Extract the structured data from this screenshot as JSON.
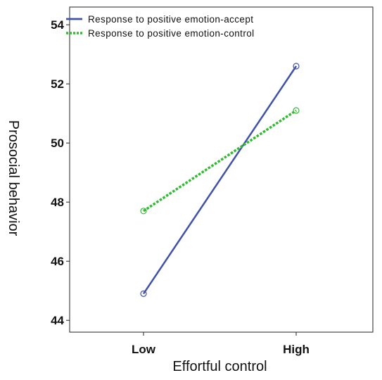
{
  "chart_data": {
    "type": "line",
    "categories": [
      "Low",
      "High"
    ],
    "series": [
      {
        "name": "Response to positive emotion-accept",
        "values": [
          44.9,
          52.6
        ],
        "color": "#4052a8",
        "line_style": "solid",
        "marker": "open-circle"
      },
      {
        "name": "Response to positive emotion-control",
        "values": [
          47.7,
          51.1
        ],
        "color": "#33bb33",
        "line_style": "dotted",
        "marker": "open-circle"
      }
    ],
    "xlabel": "Effortful control",
    "ylabel": "Prosocial behavior",
    "ylim": [
      43.6,
      54.6
    ],
    "yticks": [
      44,
      46,
      48,
      50,
      52,
      54
    ],
    "ytick_labels": [
      "44",
      "46",
      "48",
      "50",
      "52",
      "54"
    ],
    "grid": false,
    "legend_position": "top-left",
    "frame_color": "#222222"
  }
}
